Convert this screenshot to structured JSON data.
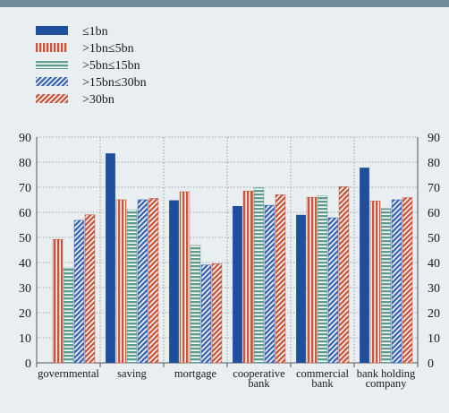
{
  "colors": {
    "background": "#e9eef1",
    "top_band": "#6f8b9b",
    "grid": "#7d8e9b",
    "axis": "#4a5560",
    "text": "#1a1a1a"
  },
  "chart_data": {
    "type": "bar",
    "title": "",
    "xlabel": "",
    "ylabel": "",
    "ylim": [
      0,
      90
    ],
    "yticks": [
      0,
      10,
      20,
      30,
      40,
      50,
      60,
      70,
      80,
      90
    ],
    "grid": true,
    "legend_position": "top-left",
    "categories": [
      [
        "governmental"
      ],
      [
        "saving"
      ],
      [
        "mortgage"
      ],
      [
        "cooperative",
        "bank"
      ],
      [
        "commercial",
        "bank"
      ],
      [
        "bank holding",
        "company"
      ]
    ],
    "series": [
      {
        "name": "≤1bn",
        "pattern": "solid",
        "color": "#1f4f9c",
        "values": [
          0,
          83.5,
          64.8,
          62.5,
          59,
          77.8
        ]
      },
      {
        "name": ">1bn≤5bn",
        "pattern": "vertical-stripes",
        "color": "#c9553d",
        "values": [
          49.2,
          65,
          68.2,
          68.5,
          66,
          64.5
        ]
      },
      {
        "name": ">5bn≤15bn",
        "pattern": "horizontal-stripes",
        "color": "#5e9c8c",
        "values": [
          37.8,
          61,
          46.8,
          69.8,
          66.5,
          61.5
        ]
      },
      {
        "name": ">15bn≤30bn",
        "pattern": "diagonal-stripes",
        "color": "#3b64b4",
        "values": [
          56.8,
          65,
          39,
          62.8,
          57.8,
          65
        ]
      },
      {
        "name": ">30bn",
        "pattern": "diagonal-stripes",
        "color": "#c9553d",
        "values": [
          59,
          65.5,
          39.5,
          67,
          70.2,
          65.8
        ]
      }
    ]
  }
}
